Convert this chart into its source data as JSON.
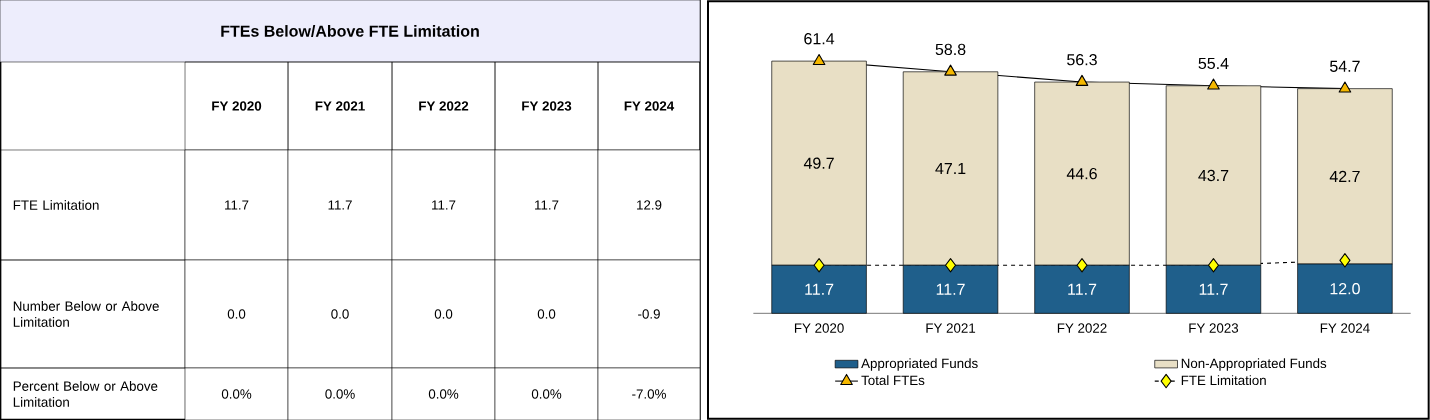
{
  "chart_data": [
    {
      "type": "other",
      "title": "FTEs Below/Above FTE Limitation",
      "categories": [
        "FY 2020",
        "FY 2021",
        "FY 2022",
        "FY 2023",
        "FY 2024"
      ],
      "y_categories": [
        "FTE Limitation",
        "Number Below or Above Limitation",
        "Percent Below or Above Limitation"
      ],
      "cell_labels": [
        [
          "11.7",
          "11.7",
          "11.7",
          "11.7",
          "12.9"
        ],
        [
          "0.0",
          "0.0",
          "0.0",
          "0.0",
          "-0.9"
        ],
        [
          "0.0%",
          "0.0%",
          "0.0%",
          "0.0%",
          "-7.0%"
        ]
      ]
    },
    {
      "type": "bar",
      "stacked": true,
      "legend": "bottom",
      "categories": [
        "FY 2020",
        "FY 2021",
        "FY 2022",
        "FY 2023",
        "FY 2024"
      ],
      "series": [
        {
          "name": "Appropriated Funds",
          "color": "#1f5f8b",
          "values": [
            11.7,
            11.7,
            11.7,
            11.7,
            12.0
          ],
          "value_labels": [
            "11.7",
            "11.7",
            "11.7",
            "11.7",
            "12.0"
          ]
        },
        {
          "name": "Non-Appropriated Funds",
          "color": "#e8dfc5",
          "values": [
            49.7,
            47.1,
            44.6,
            43.7,
            42.7
          ],
          "value_labels": [
            "49.7",
            "47.1",
            "44.6",
            "43.7",
            "42.7"
          ]
        },
        {
          "name": "Total FTEs",
          "type": "line",
          "color": "#f5b800",
          "marker": "triangle",
          "line_style": "solid",
          "values": [
            61.4,
            58.8,
            56.3,
            55.4,
            54.7
          ],
          "value_labels": [
            "61.4",
            "58.8",
            "56.3",
            "55.4",
            "54.7"
          ]
        },
        {
          "name": "FTE Limitation",
          "type": "line",
          "color": "#ffff00",
          "marker": "diamond",
          "line_style": "dashed",
          "values": [
            11.7,
            11.7,
            11.7,
            11.7,
            12.9
          ]
        }
      ]
    }
  ]
}
